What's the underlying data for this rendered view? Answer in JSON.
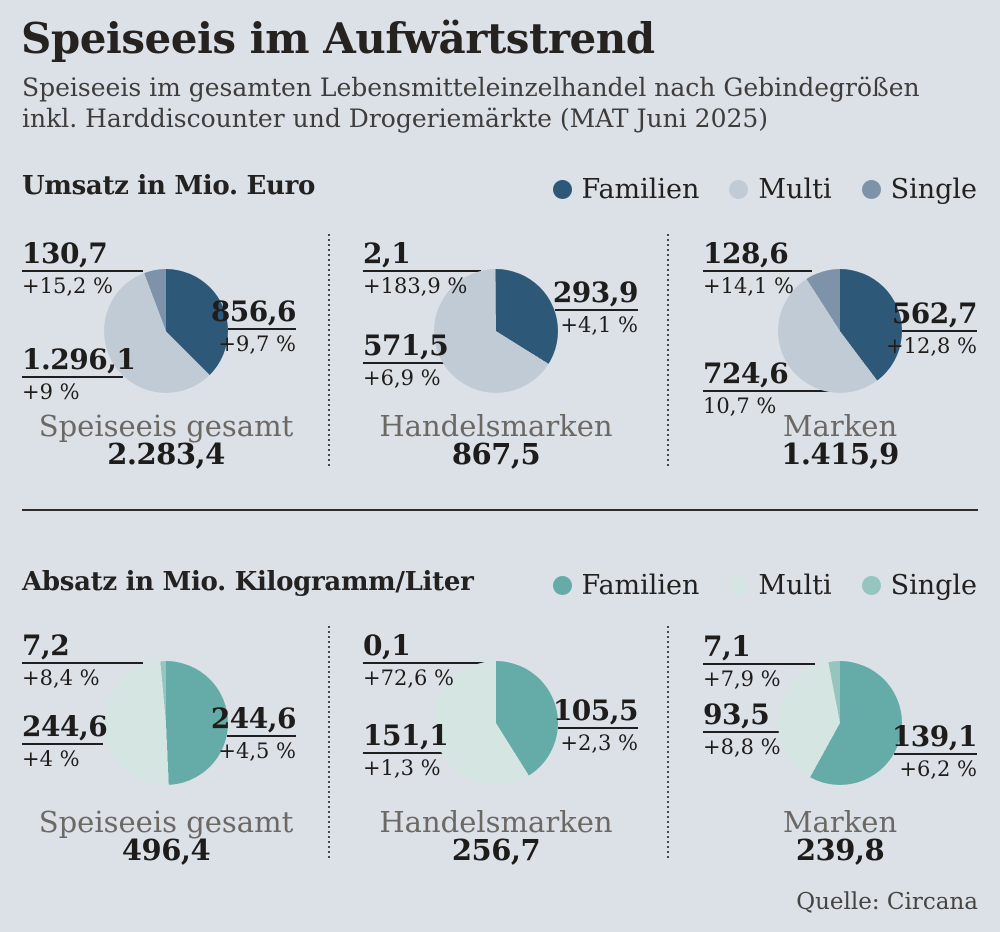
{
  "header": {
    "title": "Speiseeis im Aufwärtstrend",
    "subtitle_line1": "Speiseeis im gesamten Lebensmitteleinzelhandel nach Gebindegrößen",
    "subtitle_line2": "inkl. Harddiscounter und Drogeriemärkte (MAT Juni 2025)"
  },
  "source": "Quelle: Circana",
  "colors": {
    "background": "#dce1e8",
    "text_dark": "#1e1d1b",
    "text_gray": "#6c6965",
    "rule": "#1f1f1f",
    "familien_blue": "#2e5878",
    "multi_blue": "#c1cbd6",
    "single_blue": "#7e93a9",
    "familien_teal": "#65aba7",
    "multi_teal": "#d5e5e2",
    "single_teal": "#96c5c0"
  },
  "chart_data": [
    {
      "type": "pie",
      "section_title": "Umsatz in Mio. Euro",
      "legend": [
        {
          "label": "Familien",
          "color": "#2e5878"
        },
        {
          "label": "Multi",
          "color": "#c1cbd6"
        },
        {
          "label": "Single",
          "color": "#7e93a9"
        }
      ],
      "pies": [
        {
          "category": "Speiseeis gesamt",
          "total": 2283.4,
          "total_display": "2.283,4",
          "slices": [
            {
              "name": "Familien",
              "value": 856.6,
              "display": "856,6",
              "change": "+9,7 %"
            },
            {
              "name": "Multi",
              "value": 1296.1,
              "display": "1.296,1",
              "change": "+9 %"
            },
            {
              "name": "Single",
              "value": 130.7,
              "display": "130,7",
              "change": "+15,2 %"
            }
          ]
        },
        {
          "category": "Handelsmarken",
          "total": 867.5,
          "total_display": "867,5",
          "slices": [
            {
              "name": "Familien",
              "value": 293.9,
              "display": "293,9",
              "change": "+4,1 %"
            },
            {
              "name": "Multi",
              "value": 571.5,
              "display": "571,5",
              "change": "+6,9 %"
            },
            {
              "name": "Single",
              "value": 2.1,
              "display": "2,1",
              "change": "+183,9 %"
            }
          ]
        },
        {
          "category": "Marken",
          "total": 1415.9,
          "total_display": "1.415,9",
          "slices": [
            {
              "name": "Familien",
              "value": 562.7,
              "display": "562,7",
              "change": "+12,8 %"
            },
            {
              "name": "Multi",
              "value": 724.6,
              "display": "724,6",
              "change": "10,7 %"
            },
            {
              "name": "Single",
              "value": 128.6,
              "display": "128,6",
              "change": "+14,1 %"
            }
          ]
        }
      ]
    },
    {
      "type": "pie",
      "section_title": "Absatz in Mio. Kilogramm/Liter",
      "legend": [
        {
          "label": "Familien",
          "color": "#65aba7"
        },
        {
          "label": "Multi",
          "color": "#d5e5e2"
        },
        {
          "label": "Single",
          "color": "#96c5c0"
        }
      ],
      "pies": [
        {
          "category": "Speiseeis gesamt",
          "total": 496.4,
          "total_display": "496,4",
          "slices": [
            {
              "name": "Familien",
              "value": 244.6,
              "display": "244,6",
              "change": "+4,5 %"
            },
            {
              "name": "Multi",
              "value": 244.6,
              "display": "244,6",
              "change": "+4 %"
            },
            {
              "name": "Single",
              "value": 7.2,
              "display": "7,2",
              "change": "+8,4 %"
            }
          ]
        },
        {
          "category": "Handelsmarken",
          "total": 256.7,
          "total_display": "256,7",
          "slices": [
            {
              "name": "Familien",
              "value": 105.5,
              "display": "105,5",
              "change": "+2,3 %"
            },
            {
              "name": "Multi",
              "value": 151.1,
              "display": "151,1",
              "change": "+1,3 %"
            },
            {
              "name": "Single",
              "value": 0.1,
              "display": "0,1",
              "change": "+72,6 %"
            }
          ]
        },
        {
          "category": "Marken",
          "total": 239.8,
          "total_display": "239,8",
          "slices": [
            {
              "name": "Familien",
              "value": 139.1,
              "display": "139,1",
              "change": "+6,2 %"
            },
            {
              "name": "Multi",
              "value": 93.5,
              "display": "93,5",
              "change": "+8,8 %"
            },
            {
              "name": "Single",
              "value": 7.1,
              "display": "7,1",
              "change": "+7,9 %"
            }
          ]
        }
      ]
    }
  ]
}
